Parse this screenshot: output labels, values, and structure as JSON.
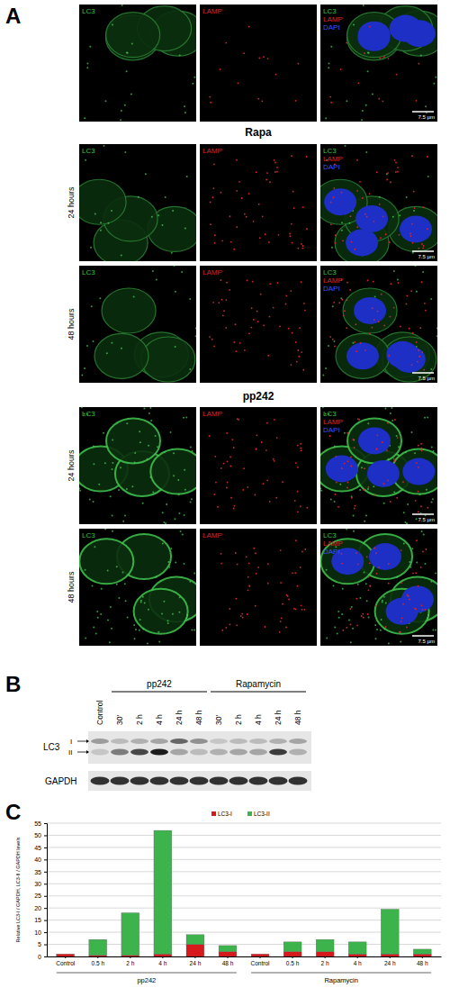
{
  "figure": {
    "panel_labels": [
      "A",
      "B",
      "C"
    ],
    "A": {
      "section_titles": [
        "Rapa",
        "pp242"
      ],
      "row_labels": [
        "24 hours",
        "48 hours",
        "24 hours",
        "48 hours"
      ],
      "channels": [
        "LC3",
        "LAMP",
        "DAPI"
      ],
      "scale_bar": "7.5 µm"
    },
    "B": {
      "lanes": [
        "Control",
        "30'",
        "2 h",
        "4 h",
        "24 h",
        "48 h",
        "30'",
        "2 h",
        "4 h",
        "24 h",
        "48 h"
      ],
      "groups": [
        "pp242",
        "Rapamycin"
      ],
      "rows": [
        "LC3",
        "GAPDH"
      ],
      "band_labels": [
        "I",
        "II"
      ]
    }
  },
  "chart_data": {
    "type": "bar",
    "stacked": true,
    "grid": true,
    "legend": "top",
    "y_label": "Relative LC3-I / GAPDH, LC3-II / GAPDH levels",
    "categories": [
      "Control",
      "0.5 h",
      "2 h",
      "4 h",
      "24 h",
      "48 h",
      "Control",
      "0.5 h",
      "2 h",
      "4 h",
      "24 h",
      "48 h"
    ],
    "group_labels": [
      "pp242",
      "Rapamycin"
    ],
    "series": [
      {
        "name": "LC3-I",
        "color": "#d7191c",
        "values": [
          1,
          0.5,
          0.5,
          1,
          5,
          2,
          1,
          2,
          2,
          1,
          1,
          1
        ]
      },
      {
        "name": "LC3-II",
        "color": "#3cb44b",
        "values": [
          0,
          6.5,
          17.5,
          51,
          4,
          2.5,
          0,
          4,
          5,
          5,
          18.5,
          2
        ]
      }
    ],
    "ylim": [
      0,
      55
    ],
    "yticks": [
      0,
      5,
      10,
      15,
      20,
      25,
      30,
      35,
      40,
      45,
      50,
      55
    ]
  }
}
